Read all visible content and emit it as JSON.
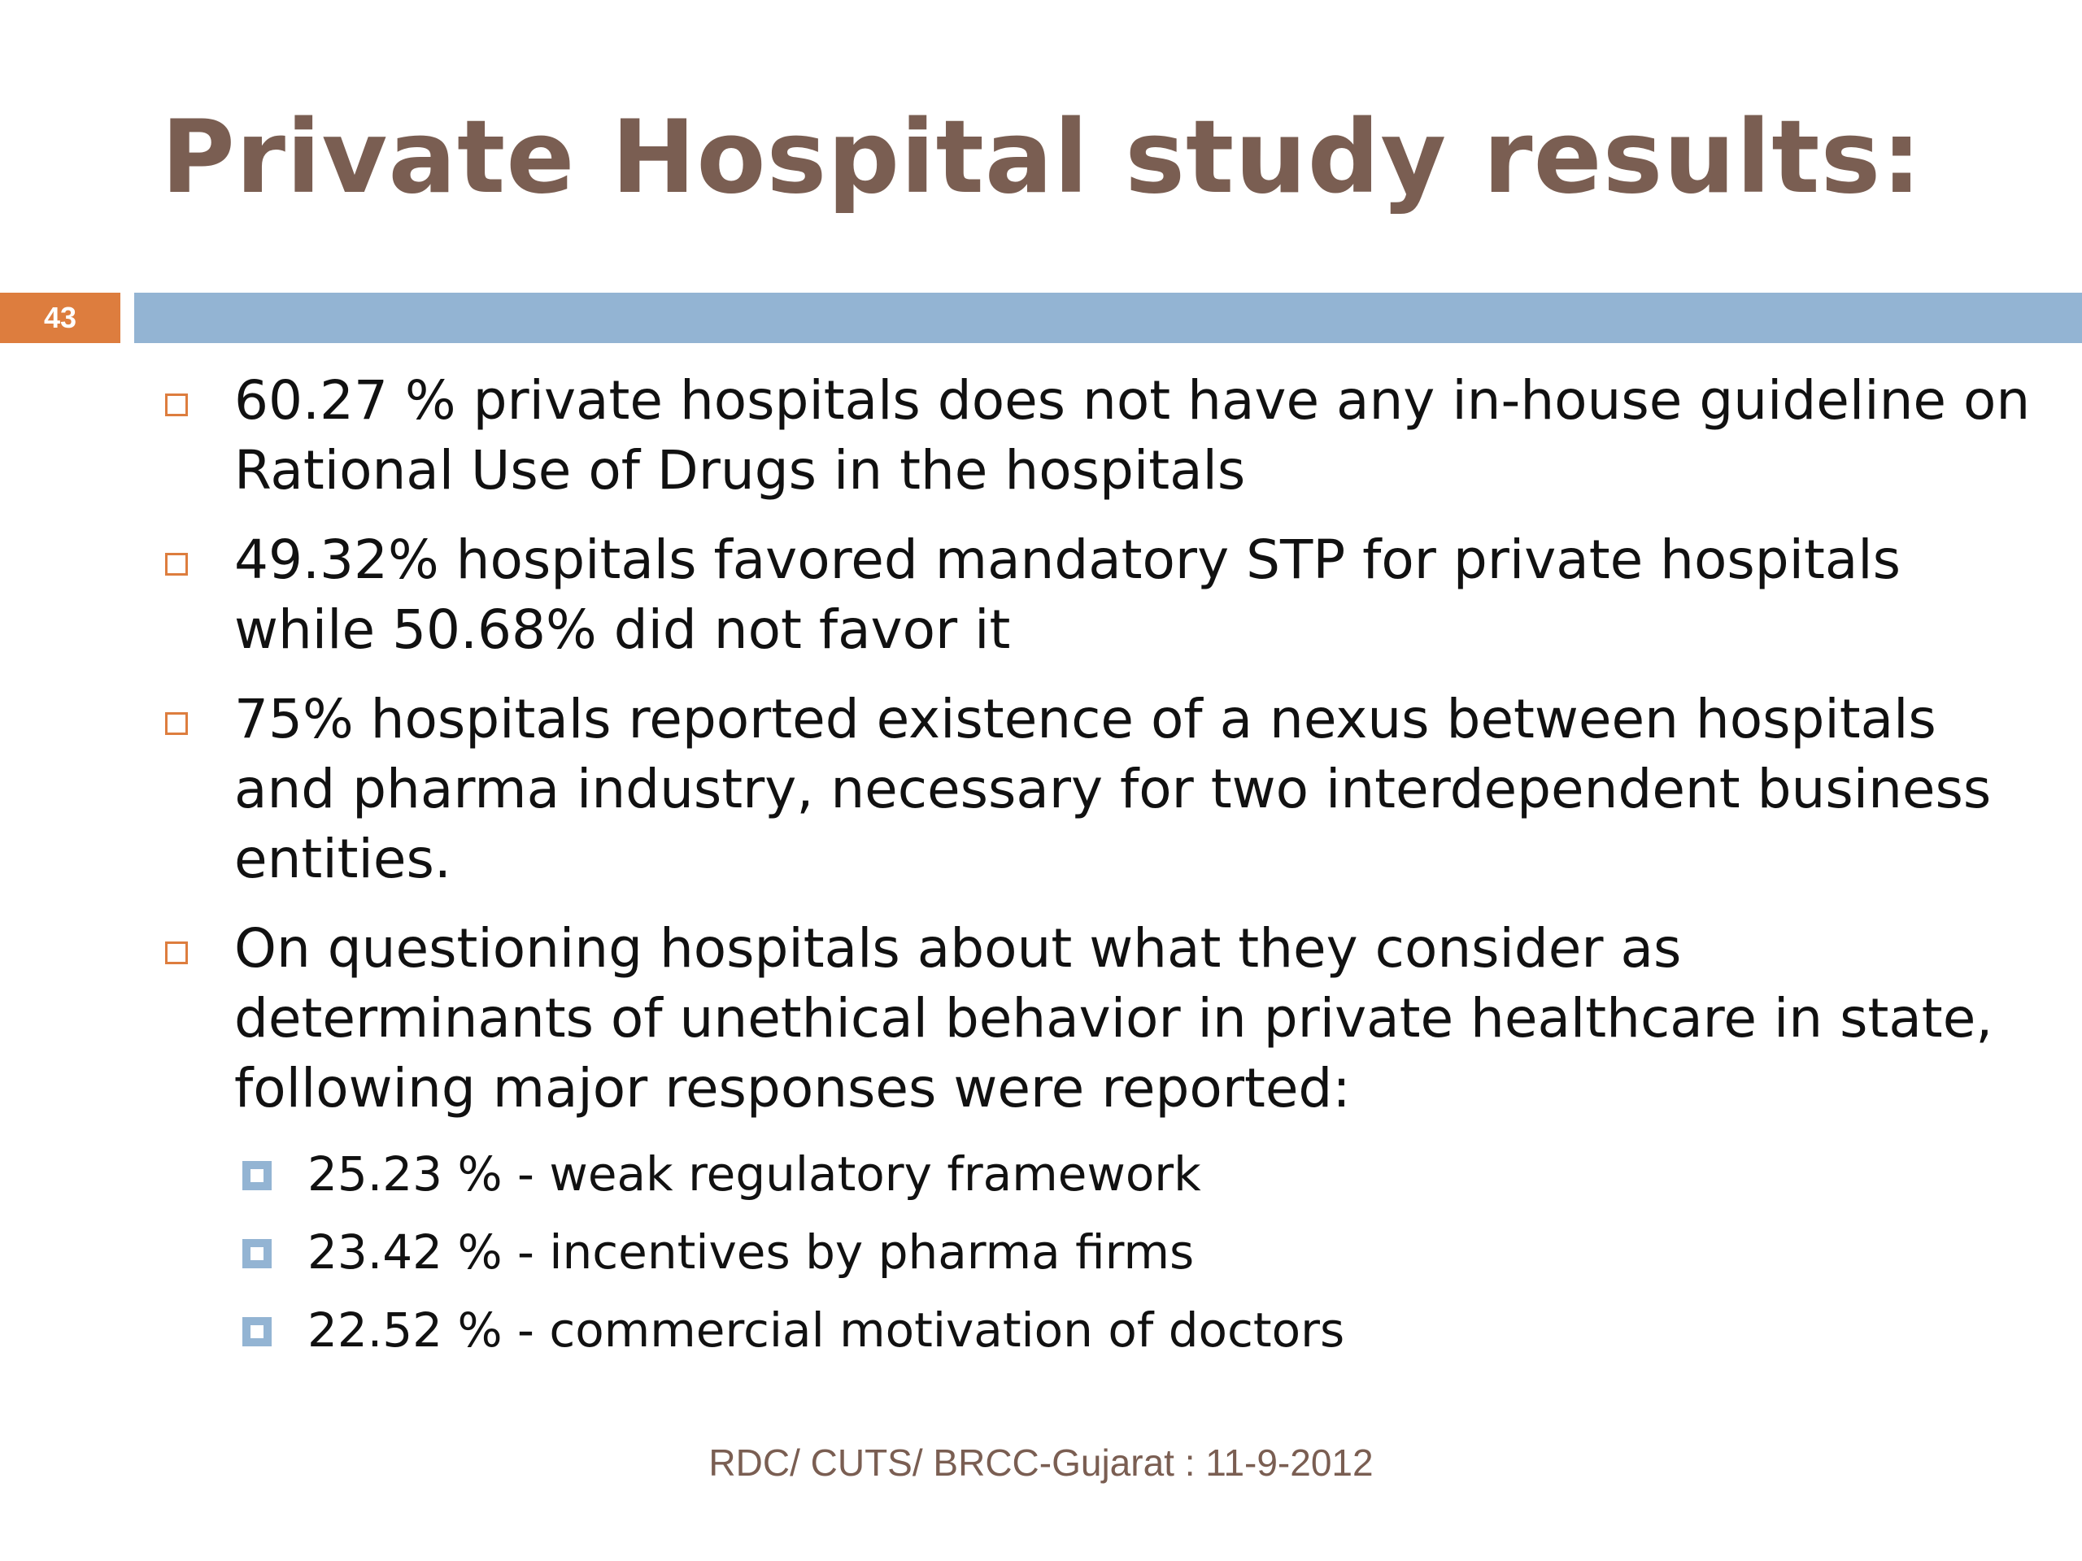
{
  "slide": {
    "title": "Private Hospital study results:",
    "number": "43",
    "bullets": [
      "60.27 % private hospitals does not have any in-house guideline on Rational Use of Drugs in the hospitals",
      "49.32% hospitals favored mandatory STP for private hospitals while 50.68% did not favor it",
      "75% hospitals reported existence of a nexus between hospitals and pharma industry, necessary for two interdependent business entities.",
      "On questioning hospitals about what they consider as determinants of unethical behavior in private healthcare in state, following major responses were reported:"
    ],
    "sub_bullets": [
      "25.23 % - weak regulatory framework",
      "23.42 % - incentives by pharma firms",
      "22.52 % - commercial motivation of doctors"
    ],
    "footer": "RDC/ CUTS/ BRCC-Gujarat : 11-9-2012"
  },
  "colors": {
    "title": "#7a5e52",
    "accent_orange": "#dd7d3e",
    "accent_blue": "#93b4d3"
  }
}
